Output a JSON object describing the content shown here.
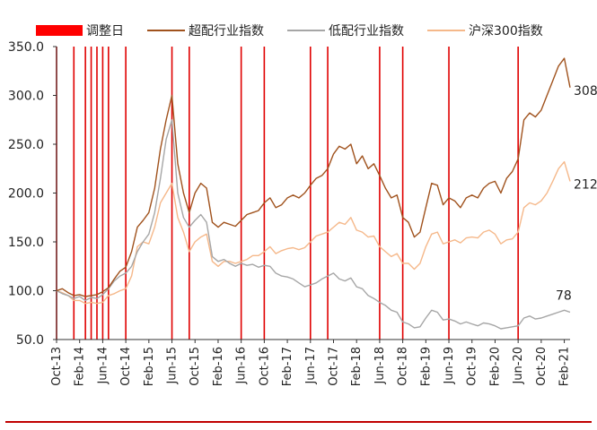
{
  "legend": [
    {
      "key": "adjust",
      "label": "调整日",
      "color": "#ff0000",
      "style": "bar"
    },
    {
      "key": "high",
      "label": "超配行业指数",
      "color": "#a0521d",
      "style": "line"
    },
    {
      "key": "low",
      "label": "低配行业指数",
      "color": "#a6a6a6",
      "style": "line"
    },
    {
      "key": "hs300",
      "label": "沪深300指数",
      "color": "#f5b88a",
      "style": "line"
    }
  ],
  "chart_data": {
    "type": "line",
    "title": "",
    "xlabel": "",
    "ylabel": "",
    "ylim": [
      50,
      350
    ],
    "yticks": [
      "50.0",
      "100.0",
      "150.0",
      "200.0",
      "250.0",
      "300.0",
      "350.0"
    ],
    "xlim": [
      "2013-10",
      "2021-03"
    ],
    "xticks": [
      "Oct-13",
      "Feb-14",
      "Jun-14",
      "Oct-14",
      "Feb-15",
      "Jun-15",
      "Oct-15",
      "Feb-16",
      "Jun-16",
      "Oct-16",
      "Feb-17",
      "Jun-17",
      "Oct-17",
      "Feb-18",
      "Jun-18",
      "Oct-18",
      "Feb-19",
      "Jun-19",
      "Oct-19",
      "Feb-20",
      "Jun-20",
      "Oct-20",
      "Feb-21"
    ],
    "grid": false,
    "legend_position": "top",
    "adjust_dates": [
      "2013-10",
      "2014-01",
      "2014-03",
      "2014-04",
      "2014-05",
      "2014-06",
      "2014-07",
      "2014-10",
      "2015-06",
      "2015-09",
      "2016-06",
      "2016-10",
      "2017-06",
      "2017-09",
      "2018-06",
      "2018-10",
      "2019-06",
      "2020-06"
    ],
    "series": [
      {
        "key": "high",
        "name": "超配行业指数",
        "color": "#a0521d",
        "end_label": "308",
        "points": [
          [
            "2013-10",
            100
          ],
          [
            "2013-11",
            102
          ],
          [
            "2013-12",
            98
          ],
          [
            "2014-01",
            95
          ],
          [
            "2014-02",
            96
          ],
          [
            "2014-03",
            94
          ],
          [
            "2014-04",
            95
          ],
          [
            "2014-05",
            96
          ],
          [
            "2014-06",
            99
          ],
          [
            "2014-07",
            103
          ],
          [
            "2014-08",
            112
          ],
          [
            "2014-09",
            120
          ],
          [
            "2014-10",
            124
          ],
          [
            "2014-11",
            140
          ],
          [
            "2014-12",
            165
          ],
          [
            "2015-01",
            172
          ],
          [
            "2015-02",
            180
          ],
          [
            "2015-03",
            205
          ],
          [
            "2015-04",
            245
          ],
          [
            "2015-05",
            275
          ],
          [
            "2015-06",
            300
          ],
          [
            "2015-07",
            230
          ],
          [
            "2015-08",
            200
          ],
          [
            "2015-09",
            180
          ],
          [
            "2015-10",
            200
          ],
          [
            "2015-11",
            210
          ],
          [
            "2015-12",
            205
          ],
          [
            "2016-01",
            170
          ],
          [
            "2016-02",
            165
          ],
          [
            "2016-03",
            170
          ],
          [
            "2016-04",
            168
          ],
          [
            "2016-05",
            166
          ],
          [
            "2016-06",
            172
          ],
          [
            "2016-07",
            178
          ],
          [
            "2016-08",
            180
          ],
          [
            "2016-09",
            182
          ],
          [
            "2016-10",
            190
          ],
          [
            "2016-11",
            195
          ],
          [
            "2016-12",
            185
          ],
          [
            "2017-01",
            188
          ],
          [
            "2017-02",
            195
          ],
          [
            "2017-03",
            198
          ],
          [
            "2017-04",
            195
          ],
          [
            "2017-05",
            200
          ],
          [
            "2017-06",
            208
          ],
          [
            "2017-07",
            215
          ],
          [
            "2017-08",
            218
          ],
          [
            "2017-09",
            225
          ],
          [
            "2017-10",
            240
          ],
          [
            "2017-11",
            248
          ],
          [
            "2017-12",
            245
          ],
          [
            "2018-01",
            250
          ],
          [
            "2018-02",
            230
          ],
          [
            "2018-03",
            238
          ],
          [
            "2018-04",
            225
          ],
          [
            "2018-05",
            230
          ],
          [
            "2018-06",
            218
          ],
          [
            "2018-07",
            205
          ],
          [
            "2018-08",
            195
          ],
          [
            "2018-09",
            198
          ],
          [
            "2018-10",
            175
          ],
          [
            "2018-11",
            170
          ],
          [
            "2018-12",
            155
          ],
          [
            "2019-01",
            160
          ],
          [
            "2019-02",
            185
          ],
          [
            "2019-03",
            210
          ],
          [
            "2019-04",
            208
          ],
          [
            "2019-05",
            188
          ],
          [
            "2019-06",
            195
          ],
          [
            "2019-07",
            192
          ],
          [
            "2019-08",
            185
          ],
          [
            "2019-09",
            195
          ],
          [
            "2019-10",
            198
          ],
          [
            "2019-11",
            195
          ],
          [
            "2019-12",
            205
          ],
          [
            "2020-01",
            210
          ],
          [
            "2020-02",
            212
          ],
          [
            "2020-03",
            200
          ],
          [
            "2020-04",
            215
          ],
          [
            "2020-05",
            222
          ],
          [
            "2020-06",
            235
          ],
          [
            "2020-07",
            275
          ],
          [
            "2020-08",
            282
          ],
          [
            "2020-09",
            278
          ],
          [
            "2020-10",
            285
          ],
          [
            "2020-11",
            300
          ],
          [
            "2020-12",
            315
          ],
          [
            "2021-01",
            330
          ],
          [
            "2021-02",
            338
          ],
          [
            "2021-03",
            308
          ]
        ]
      },
      {
        "key": "low",
        "name": "低配行业指数",
        "color": "#a6a6a6",
        "end_label": "78",
        "points": [
          [
            "2013-10",
            100
          ],
          [
            "2013-11",
            97
          ],
          [
            "2013-12",
            95
          ],
          [
            "2014-01",
            92
          ],
          [
            "2014-02",
            94
          ],
          [
            "2014-03",
            90
          ],
          [
            "2014-04",
            93
          ],
          [
            "2014-05",
            92
          ],
          [
            "2014-06",
            96
          ],
          [
            "2014-07",
            102
          ],
          [
            "2014-08",
            110
          ],
          [
            "2014-09",
            115
          ],
          [
            "2014-10",
            118
          ],
          [
            "2014-11",
            125
          ],
          [
            "2014-12",
            140
          ],
          [
            "2015-01",
            150
          ],
          [
            "2015-02",
            158
          ],
          [
            "2015-03",
            180
          ],
          [
            "2015-04",
            215
          ],
          [
            "2015-05",
            255
          ],
          [
            "2015-06",
            275
          ],
          [
            "2015-07",
            200
          ],
          [
            "2015-08",
            175
          ],
          [
            "2015-09",
            165
          ],
          [
            "2015-10",
            172
          ],
          [
            "2015-11",
            178
          ],
          [
            "2015-12",
            170
          ],
          [
            "2016-01",
            135
          ],
          [
            "2016-02",
            130
          ],
          [
            "2016-03",
            132
          ],
          [
            "2016-04",
            128
          ],
          [
            "2016-05",
            125
          ],
          [
            "2016-06",
            128
          ],
          [
            "2016-07",
            126
          ],
          [
            "2016-08",
            127
          ],
          [
            "2016-09",
            124
          ],
          [
            "2016-10",
            126
          ],
          [
            "2016-11",
            125
          ],
          [
            "2016-12",
            118
          ],
          [
            "2017-01",
            115
          ],
          [
            "2017-02",
            114
          ],
          [
            "2017-03",
            112
          ],
          [
            "2017-04",
            108
          ],
          [
            "2017-05",
            104
          ],
          [
            "2017-06",
            106
          ],
          [
            "2017-07",
            108
          ],
          [
            "2017-08",
            112
          ],
          [
            "2017-09",
            115
          ],
          [
            "2017-10",
            118
          ],
          [
            "2017-11",
            112
          ],
          [
            "2017-12",
            110
          ],
          [
            "2018-01",
            113
          ],
          [
            "2018-02",
            104
          ],
          [
            "2018-03",
            102
          ],
          [
            "2018-04",
            95
          ],
          [
            "2018-05",
            92
          ],
          [
            "2018-06",
            88
          ],
          [
            "2018-07",
            85
          ],
          [
            "2018-08",
            80
          ],
          [
            "2018-09",
            78
          ],
          [
            "2018-10",
            68
          ],
          [
            "2018-11",
            66
          ],
          [
            "2018-12",
            62
          ],
          [
            "2019-01",
            63
          ],
          [
            "2019-02",
            72
          ],
          [
            "2019-03",
            80
          ],
          [
            "2019-04",
            78
          ],
          [
            "2019-05",
            70
          ],
          [
            "2019-06",
            71
          ],
          [
            "2019-07",
            69
          ],
          [
            "2019-08",
            66
          ],
          [
            "2019-09",
            68
          ],
          [
            "2019-10",
            66
          ],
          [
            "2019-11",
            64
          ],
          [
            "2019-12",
            67
          ],
          [
            "2020-01",
            66
          ],
          [
            "2020-02",
            64
          ],
          [
            "2020-03",
            61
          ],
          [
            "2020-04",
            62
          ],
          [
            "2020-05",
            63
          ],
          [
            "2020-06",
            64
          ],
          [
            "2020-07",
            72
          ],
          [
            "2020-08",
            74
          ],
          [
            "2020-09",
            71
          ],
          [
            "2020-10",
            72
          ],
          [
            "2020-11",
            74
          ],
          [
            "2020-12",
            76
          ],
          [
            "2021-01",
            78
          ],
          [
            "2021-02",
            80
          ],
          [
            "2021-03",
            78
          ]
        ]
      },
      {
        "key": "hs300",
        "name": "沪深300指数",
        "color": "#f5b88a",
        "end_label": "212",
        "points": [
          [
            "2013-10",
            100
          ],
          [
            "2013-11",
            98
          ],
          [
            "2013-12",
            95
          ],
          [
            "2014-01",
            90
          ],
          [
            "2014-02",
            90
          ],
          [
            "2014-03",
            87
          ],
          [
            "2014-04",
            88
          ],
          [
            "2014-05",
            87
          ],
          [
            "2014-06",
            88
          ],
          [
            "2014-07",
            95
          ],
          [
            "2014-08",
            97
          ],
          [
            "2014-09",
            100
          ],
          [
            "2014-10",
            102
          ],
          [
            "2014-11",
            115
          ],
          [
            "2014-12",
            145
          ],
          [
            "2015-01",
            150
          ],
          [
            "2015-02",
            148
          ],
          [
            "2015-03",
            165
          ],
          [
            "2015-04",
            190
          ],
          [
            "2015-05",
            200
          ],
          [
            "2015-06",
            210
          ],
          [
            "2015-07",
            175
          ],
          [
            "2015-08",
            160
          ],
          [
            "2015-09",
            140
          ],
          [
            "2015-10",
            150
          ],
          [
            "2015-11",
            155
          ],
          [
            "2015-12",
            158
          ],
          [
            "2016-01",
            130
          ],
          [
            "2016-02",
            125
          ],
          [
            "2016-03",
            130
          ],
          [
            "2016-04",
            130
          ],
          [
            "2016-05",
            128
          ],
          [
            "2016-06",
            130
          ],
          [
            "2016-07",
            132
          ],
          [
            "2016-08",
            136
          ],
          [
            "2016-09",
            136
          ],
          [
            "2016-10",
            140
          ],
          [
            "2016-11",
            145
          ],
          [
            "2016-12",
            138
          ],
          [
            "2017-01",
            141
          ],
          [
            "2017-02",
            143
          ],
          [
            "2017-03",
            144
          ],
          [
            "2017-04",
            142
          ],
          [
            "2017-05",
            144
          ],
          [
            "2017-06",
            150
          ],
          [
            "2017-07",
            156
          ],
          [
            "2017-08",
            158
          ],
          [
            "2017-09",
            160
          ],
          [
            "2017-10",
            165
          ],
          [
            "2017-11",
            170
          ],
          [
            "2017-12",
            168
          ],
          [
            "2018-01",
            175
          ],
          [
            "2018-02",
            162
          ],
          [
            "2018-03",
            160
          ],
          [
            "2018-04",
            155
          ],
          [
            "2018-05",
            156
          ],
          [
            "2018-06",
            145
          ],
          [
            "2018-07",
            140
          ],
          [
            "2018-08",
            135
          ],
          [
            "2018-09",
            138
          ],
          [
            "2018-10",
            128
          ],
          [
            "2018-11",
            128
          ],
          [
            "2018-12",
            122
          ],
          [
            "2019-01",
            128
          ],
          [
            "2019-02",
            145
          ],
          [
            "2019-03",
            158
          ],
          [
            "2019-04",
            160
          ],
          [
            "2019-05",
            148
          ],
          [
            "2019-06",
            150
          ],
          [
            "2019-07",
            152
          ],
          [
            "2019-08",
            149
          ],
          [
            "2019-09",
            154
          ],
          [
            "2019-10",
            155
          ],
          [
            "2019-11",
            154
          ],
          [
            "2019-12",
            160
          ],
          [
            "2020-01",
            162
          ],
          [
            "2020-02",
            158
          ],
          [
            "2020-03",
            148
          ],
          [
            "2020-04",
            152
          ],
          [
            "2020-05",
            153
          ],
          [
            "2020-06",
            160
          ],
          [
            "2020-07",
            185
          ],
          [
            "2020-08",
            190
          ],
          [
            "2020-09",
            188
          ],
          [
            "2020-10",
            192
          ],
          [
            "2020-11",
            200
          ],
          [
            "2020-12",
            212
          ],
          [
            "2021-01",
            225
          ],
          [
            "2021-02",
            232
          ],
          [
            "2021-03",
            212
          ]
        ]
      }
    ]
  }
}
